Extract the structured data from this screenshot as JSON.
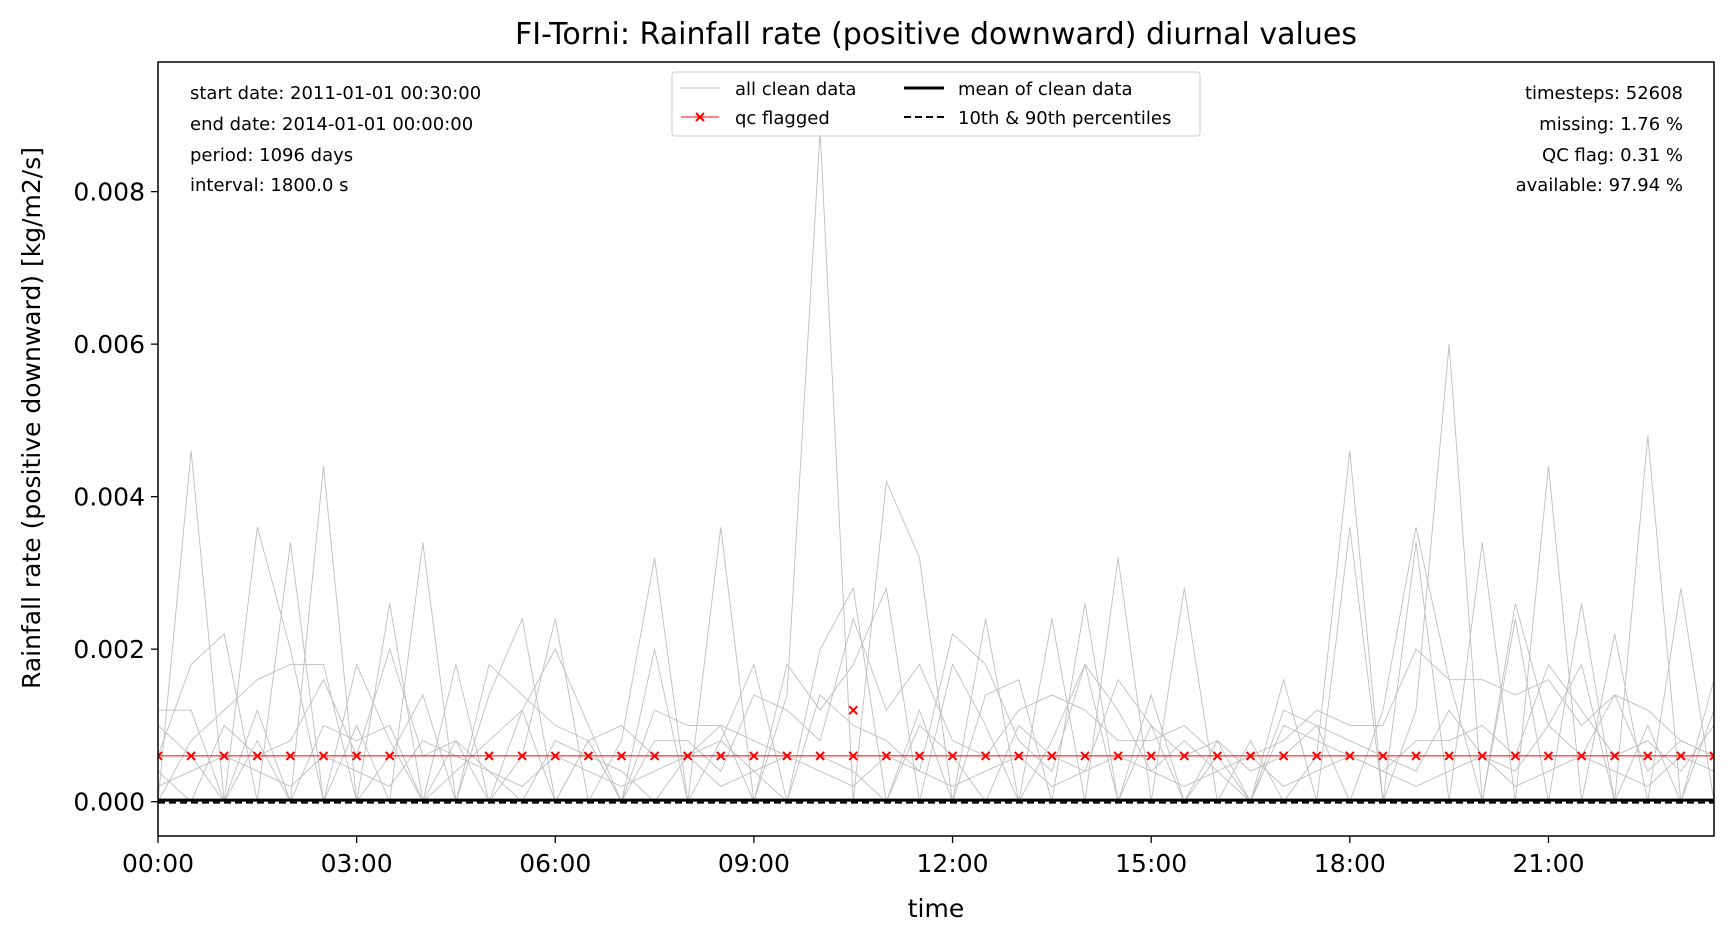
{
  "chart_data": {
    "type": "line",
    "title": "FI-Torni: Rainfall rate (positive downward) diurnal values",
    "xlabel": "time",
    "ylabel": "Rainfall rate (positive downward) [kg/m2/s]",
    "xlim_hours": [
      0,
      23.5
    ],
    "ylim": [
      -0.00045,
      0.0097
    ],
    "x_ticks": [
      {
        "hour": 0,
        "label": "00:00"
      },
      {
        "hour": 3,
        "label": "03:00"
      },
      {
        "hour": 6,
        "label": "06:00"
      },
      {
        "hour": 9,
        "label": "09:00"
      },
      {
        "hour": 12,
        "label": "12:00"
      },
      {
        "hour": 15,
        "label": "15:00"
      },
      {
        "hour": 18,
        "label": "18:00"
      },
      {
        "hour": 21,
        "label": "21:00"
      }
    ],
    "y_ticks": [
      {
        "value": 0.0,
        "label": "0.000"
      },
      {
        "value": 0.002,
        "label": "0.002"
      },
      {
        "value": 0.004,
        "label": "0.004"
      },
      {
        "value": 0.006,
        "label": "0.006"
      },
      {
        "value": 0.008,
        "label": "0.008"
      }
    ],
    "grid": false,
    "legend_position": "top-center",
    "legend": [
      {
        "label": "all clean data",
        "style": "thin-gray-line"
      },
      {
        "label": "mean of clean data",
        "style": "solid-black"
      },
      {
        "label": "qc flagged",
        "style": "red-line-x-marker"
      },
      {
        "label": "10th & 90th percentiles",
        "style": "dashed-black"
      }
    ],
    "info_left": [
      "start date: 2011-01-01 00:30:00",
      "end date: 2014-01-01 00:00:00",
      "period: 1096 days",
      "interval: 1800.0 s"
    ],
    "info_right": [
      "timesteps: 52608",
      "missing: 1.76 %",
      "QC flag: 0.31 %",
      "available: 97.94 %"
    ],
    "colors": {
      "clean": "#bfbfbf",
      "qc": "#ff0000",
      "mean": "#000000"
    },
    "x_hours": [
      0,
      0.5,
      1,
      1.5,
      2,
      2.5,
      3,
      3.5,
      4,
      4.5,
      5,
      5.5,
      6,
      6.5,
      7,
      7.5,
      8,
      8.5,
      9,
      9.5,
      10,
      10.5,
      11,
      11.5,
      12,
      12.5,
      13,
      13.5,
      14,
      14.5,
      15,
      15.5,
      16,
      16.5,
      17,
      17.5,
      18,
      18.5,
      19,
      19.5,
      20,
      20.5,
      21,
      21.5,
      22,
      22.5,
      23,
      23.5
    ],
    "series": [
      {
        "values": [
          0,
          0.0046,
          0,
          0.0008,
          0,
          0.0044,
          0,
          0.0026,
          0,
          0.0008,
          0,
          0.0006,
          0.0024,
          0,
          0.0008,
          0.0032,
          0,
          0.0036,
          0,
          0.0014,
          0.0088,
          0,
          0.0042,
          0.0032,
          0,
          0.0024,
          0,
          0.0024,
          0,
          0.0032,
          0,
          0.0028,
          0,
          0.0008,
          0,
          0.0006,
          0.0046,
          0,
          0.0012,
          0.006,
          0,
          0.0024,
          0,
          0.0026,
          0,
          0.0048,
          0,
          0.0016
        ]
      },
      {
        "values": [
          0.0012,
          0.0012,
          0,
          0.0036,
          0.002,
          0,
          0.001,
          0,
          0.0034,
          0,
          0.0014,
          0.0024,
          0,
          0.0008,
          0,
          0.002,
          0,
          0.0008,
          0.0018,
          0,
          0.002,
          0.0028,
          0,
          0.0012,
          0,
          0.0014,
          0.0016,
          0,
          0.0026,
          0,
          0.0014,
          0,
          0.0008,
          0,
          0.0016,
          0,
          0.0036,
          0,
          0.0034,
          0,
          0.0034,
          0,
          0.0044,
          0,
          0.0022,
          0,
          0.0028,
          0
        ]
      },
      {
        "values": [
          0.0006,
          0.0018,
          0.0022,
          0,
          0.0034,
          0,
          0.0018,
          0.0008,
          0,
          0.0018,
          0,
          0.0012,
          0.002,
          0.001,
          0,
          0.0012,
          0.001,
          0.001,
          0,
          0.0018,
          0.0012,
          0.0018,
          0.0028,
          0,
          0.0018,
          0.001,
          0,
          0.0008,
          0.0018,
          0,
          0.001,
          0,
          0.0006,
          0,
          0.0012,
          0.001,
          0,
          0.0012,
          0.0036,
          0.0016,
          0,
          0.0026,
          0.001,
          0.0018,
          0,
          0.001,
          0,
          0.0012
        ]
      },
      {
        "values": [
          0,
          0.0008,
          0.0012,
          0.0016,
          0.0018,
          0.0018,
          0,
          0.0006,
          0.0014,
          0,
          0.0018,
          0.0014,
          0.001,
          0.0008,
          0,
          0.0008,
          0.0008,
          0.0004,
          0.0014,
          0.0012,
          0.0008,
          0.0024,
          0.0012,
          0.0018,
          0.0008,
          0.0006,
          0.0012,
          0.0014,
          0.0012,
          0.0008,
          0.0008,
          0.001,
          0.0006,
          0.0006,
          0.0008,
          0.0012,
          0.001,
          0.001,
          0.002,
          0.0016,
          0.0016,
          0.0014,
          0.0016,
          0.001,
          0.0014,
          0.0012,
          0.0008,
          0.0006
        ]
      },
      {
        "values": [
          0.0004,
          0,
          0.001,
          0.0006,
          0.0008,
          0.0016,
          0.0006,
          0.002,
          0.0006,
          0.0008,
          0.0004,
          0,
          0.0008,
          0.0006,
          0.0004,
          0,
          0.0006,
          0.0008,
          0.0004,
          0,
          0.0014,
          0.001,
          0.0008,
          0.0004,
          0.0022,
          0.0018,
          0.0008,
          0.0004,
          0.0018,
          0.0012,
          0.0004,
          0.0008,
          0.0004,
          0,
          0.001,
          0.0008,
          0.0006,
          0.0004,
          0.0008,
          0.0008,
          0.001,
          0.0006,
          0.0018,
          0.0012,
          0.0006,
          0.0008,
          0.0004,
          0.001
        ]
      },
      {
        "values": [
          0.001,
          0.0006,
          0,
          0.0012,
          0,
          0.001,
          0.0008,
          0.001,
          0,
          0.0004,
          0.0008,
          0.0012,
          0,
          0.0008,
          0.001,
          0.0006,
          0.0006,
          0.001,
          0.0008,
          0.0006,
          0.0006,
          0.0004,
          0,
          0.001,
          0.0006,
          0,
          0.001,
          0.0006,
          0.0004,
          0.0016,
          0.001,
          0.0006,
          0.0008,
          0.0004,
          0.0006,
          0.001,
          0.0008,
          0.0006,
          0.0004,
          0.0012,
          0.0006,
          0.0004,
          0.001,
          0.0006,
          0.0014,
          0.0004,
          0.0008,
          0.0006
        ]
      },
      {
        "values": [
          0.0002,
          0.0004,
          0.0006,
          0.0004,
          0.0002,
          0.0006,
          0.0004,
          0.0002,
          0.0008,
          0.0006,
          0.0004,
          0.0002,
          0.0006,
          0.0004,
          0.0002,
          0.0004,
          0.0006,
          0.0002,
          0.0004,
          0.0006,
          0.0004,
          0.0002,
          0.0006,
          0.0004,
          0.0002,
          0.0004,
          0.0006,
          0.0002,
          0.0004,
          0.0006,
          0.0004,
          0.0002,
          0.0004,
          0.0006,
          0.0002,
          0.0004,
          0.0006,
          0.0004,
          0.0002,
          0.0004,
          0.0006,
          0.0002,
          0.0004,
          0.0006,
          0.0004,
          0.0002,
          0.0006,
          0.0004
        ]
      }
    ],
    "qc_flagged": {
      "value": 0.0006,
      "x_hours": [
        0,
        0.5,
        1,
        1.5,
        2,
        2.5,
        3,
        3.5,
        5,
        5.5,
        6,
        6.5,
        7,
        7.5,
        8,
        8.5,
        9,
        9.5,
        10,
        10.5,
        11,
        11.5,
        12,
        12.5,
        13,
        13.5,
        14,
        14.5,
        15,
        15.5,
        16,
        16.5,
        17,
        17.5,
        18,
        18.5,
        19,
        19.5,
        20,
        20.5,
        21,
        21.5,
        22,
        22.5,
        23,
        23.5
      ],
      "extra_points": [
        {
          "hour": 10.5,
          "value": 0.0012
        }
      ]
    },
    "mean_value": 2e-05,
    "p10_value": 0,
    "p90_value": 0
  }
}
